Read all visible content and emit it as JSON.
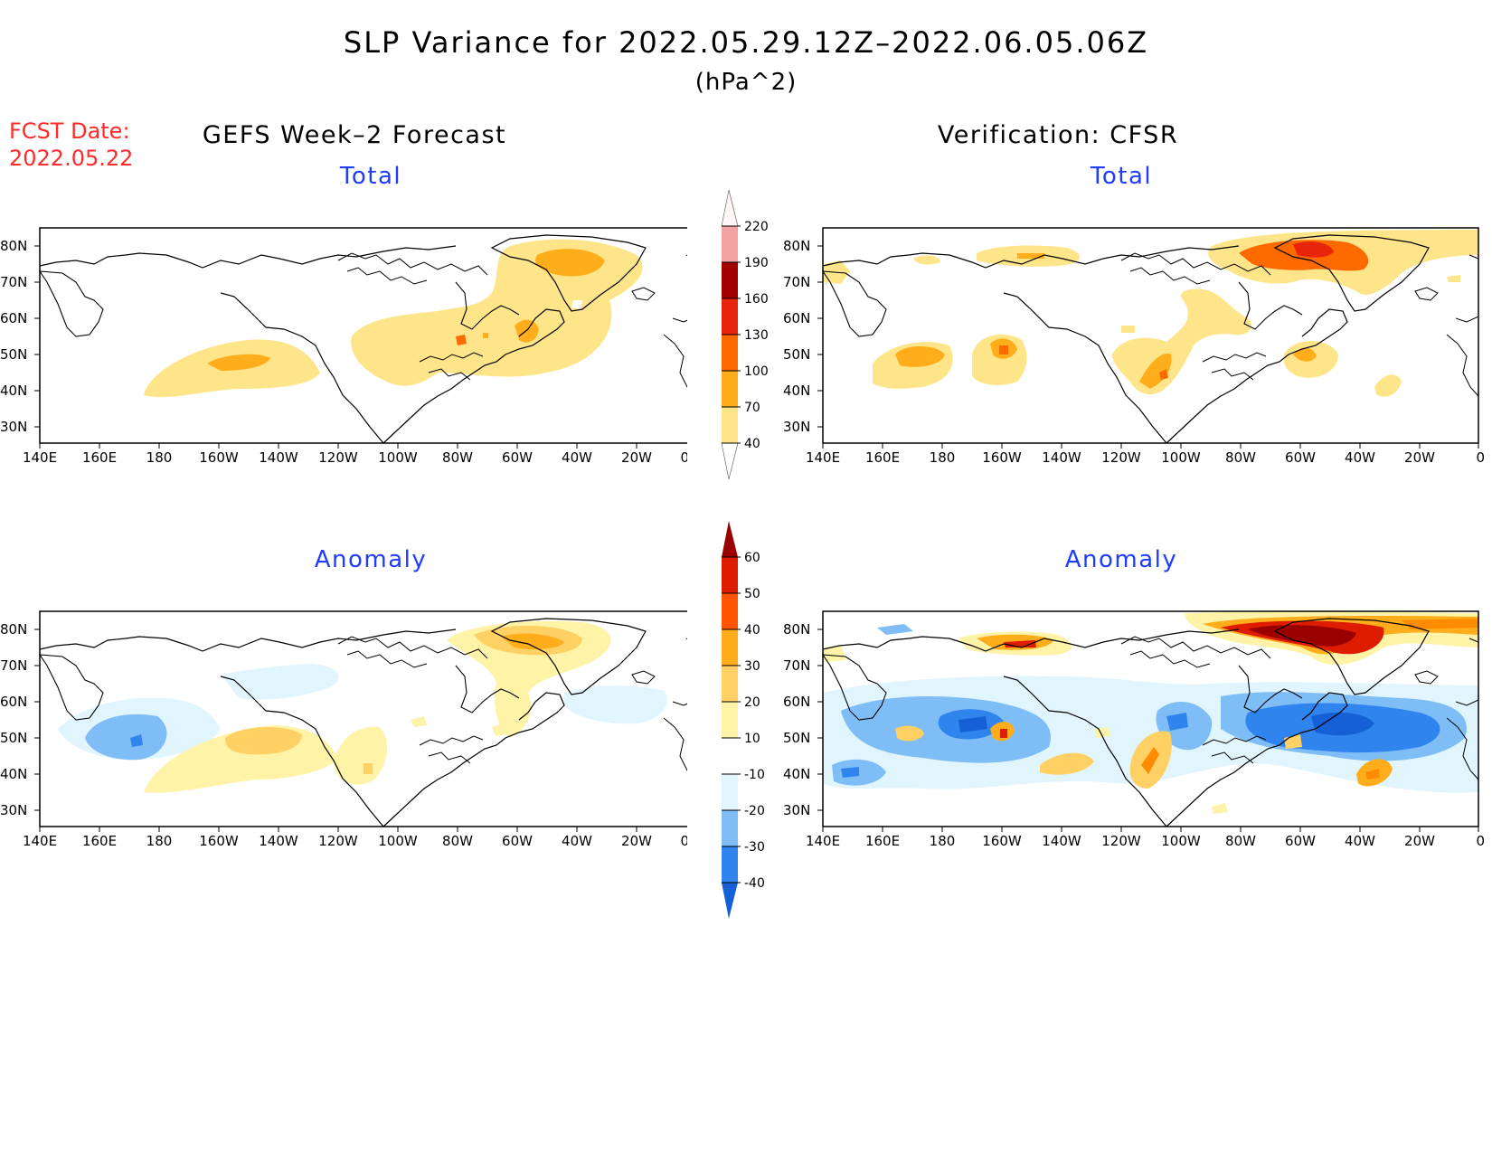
{
  "header": {
    "title": "SLP Variance for 2022.05.29.12Z–2022.06.05.06Z",
    "units": "(hPa^2)",
    "fcst_label": "FCST Date:",
    "fcst_date": "2022.05.22"
  },
  "columns": {
    "left_heading": "GEFS Week–2 Forecast",
    "right_heading": "Verification: CFSR"
  },
  "panels": {
    "top_title": "Total",
    "bottom_title": "Anomaly"
  },
  "axes": {
    "lat_labels": [
      "80N",
      "70N",
      "60N",
      "50N",
      "40N",
      "30N"
    ],
    "lon_labels": [
      "140E",
      "160E",
      "180",
      "160W",
      "140W",
      "120W",
      "100W",
      "80W",
      "60W",
      "40W",
      "20W",
      "0"
    ]
  },
  "colorbars": {
    "total": {
      "levels": [
        "40",
        "70",
        "100",
        "130",
        "160",
        "190",
        "220"
      ],
      "colors": [
        "#ffe58a",
        "#ffad1a",
        "#ff6a00",
        "#e8250a",
        "#a30000",
        "#f2a1a1",
        "#ffd7d7"
      ]
    },
    "anomaly": {
      "levels": [
        "-40",
        "-30",
        "-20",
        "-10",
        "10",
        "20",
        "30",
        "40",
        "50",
        "60"
      ],
      "colors": [
        "#1560d6",
        "#2f84ee",
        "#7fbdf6",
        "#bfe0fb",
        "#e1f5fe",
        "#ffffff",
        "#fff3a8",
        "#ffd164",
        "#ffad1a",
        "#ff8c00",
        "#ff5500",
        "#dd1c00",
        "#9b0000"
      ]
    }
  }
}
